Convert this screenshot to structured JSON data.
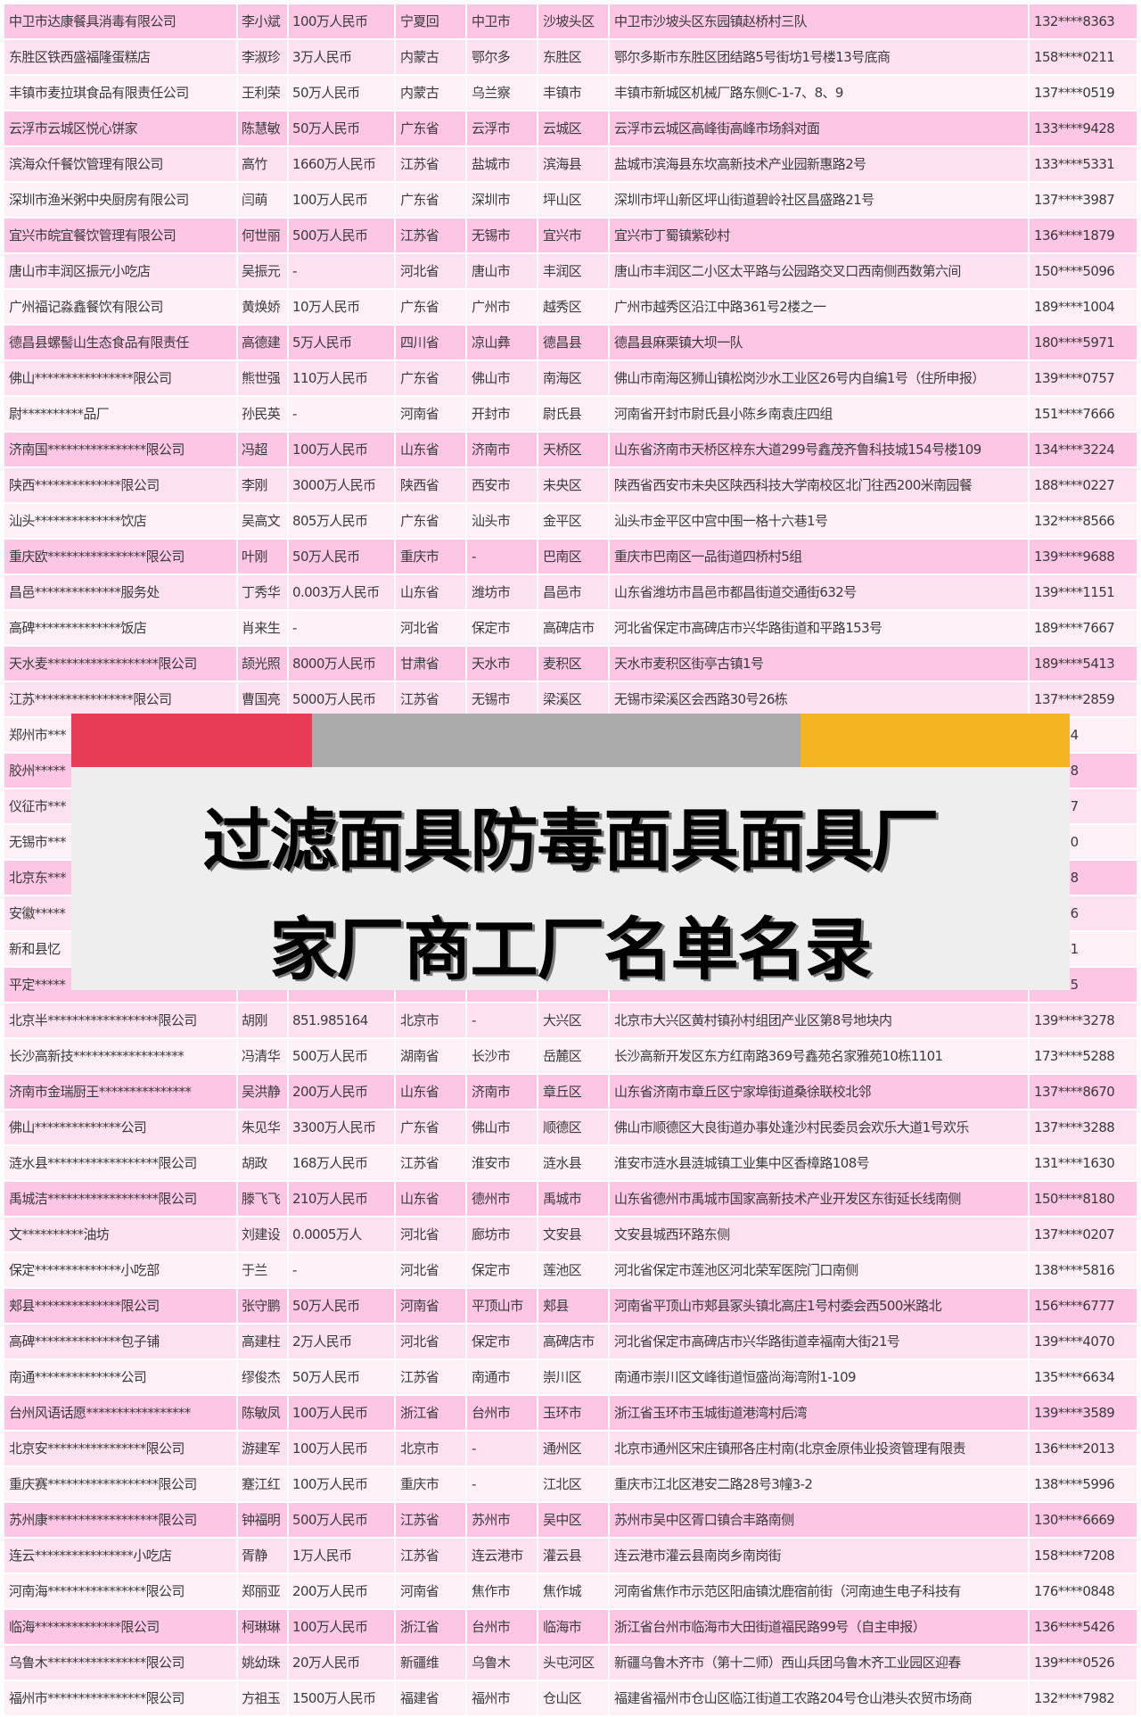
{
  "banner": {
    "title": "过滤面具防毒面具面具厂家厂商工厂名单名录",
    "colors": {
      "red": "#e83c56",
      "gray": "#aaaaaa",
      "yellow": "#f5b523",
      "box": "#eeeeee"
    }
  },
  "row_colors": [
    "#fdc6e5",
    "#fee1f0",
    "#fff0f8"
  ],
  "rows": [
    [
      "中卫市达康餐具消毒有限公司",
      "李小斌",
      "100万人民币",
      "宁夏回",
      "中卫市",
      "沙坡头区",
      "中卫市沙坡头区东园镇赵桥村三队",
      "132****8363"
    ],
    [
      "东胜区铁西盛福隆蛋糕店",
      "李淑珍",
      "3万人民币",
      "内蒙古",
      "鄂尔多",
      "东胜区",
      "鄂尔多斯市东胜区团结路5号街坊1号楼13号底商",
      "158****0211"
    ],
    [
      "丰镇市麦拉琪食品有限责任公司",
      "王利荣",
      "50万人民币",
      "内蒙古",
      "乌兰察",
      "丰镇市",
      "丰镇市新城区机械厂路东侧C-1-7、8、9",
      "137****0519"
    ],
    [
      "云浮市云城区悦心饼家",
      "陈慧敏",
      "50万人民币",
      "广东省",
      "云浮市",
      "云城区",
      "云浮市云城区高峰街高峰市场斜对面",
      "133****9428"
    ],
    [
      "滨海众仟餐饮管理有限公司",
      "高竹",
      "1660万人民币",
      "江苏省",
      "盐城市",
      "滨海县",
      "盐城市滨海县东坎高新技术产业园新惠路2号",
      "133****5331"
    ],
    [
      "深圳市渔米粥中央厨房有限公司",
      "闫萌",
      "100万人民币",
      "广东省",
      "深圳市",
      "坪山区",
      "深圳市坪山新区坪山街道碧岭社区昌盛路21号",
      "137****3987"
    ],
    [
      "宜兴市皖宜餐饮管理有限公司",
      "何世丽",
      "500万人民币",
      "江苏省",
      "无锡市",
      "宜兴市",
      "宜兴市丁蜀镇紫砂村",
      "136****1879"
    ],
    [
      "唐山市丰润区振元小吃店",
      "吴振元",
      "-",
      "河北省",
      "唐山市",
      "丰润区",
      "唐山市丰润区二小区太平路与公园路交叉口西南侧西数第六间",
      "150****5096"
    ],
    [
      "广州福记淼鑫餐饮有限公司",
      "黄焕娇",
      "10万人民币",
      "广东省",
      "广州市",
      "越秀区",
      "广州市越秀区沿江中路361号2楼之一",
      "189****1004"
    ],
    [
      "德昌县螺髻山生态食品有限责任",
      "高德建",
      "5万人民币",
      "四川省",
      "凉山彝",
      "德昌县",
      "德昌县麻栗镇大坝一队",
      "180****5971"
    ],
    [
      "佛山****************限公司",
      "熊世强",
      "110万人民币",
      "广东省",
      "佛山市",
      "南海区",
      "佛山市南海区狮山镇松岗沙水工业区26号内自编1号（住所申报）",
      "139****0757"
    ],
    [
      "尉**********品厂",
      "孙民英",
      "-",
      "河南省",
      "开封市",
      "尉氏县",
      "河南省开封市尉氏县小陈乡南袁庄四组",
      "151****7666"
    ],
    [
      "济南国****************限公司",
      "冯超",
      "100万人民币",
      "山东省",
      "济南市",
      "天桥区",
      "山东省济南市天桥区梓东大道299号鑫茂齐鲁科技城154号楼109",
      "134****3224"
    ],
    [
      "陕西**************限公司",
      "李刚",
      "3000万人民币",
      "陕西省",
      "西安市",
      "未央区",
      "陕西省西安市未央区陕西科技大学南校区北门往西200米南园餐",
      "188****0227"
    ],
    [
      "汕头**************饮店",
      "吴高文",
      "805万人民币",
      "广东省",
      "汕头市",
      "金平区",
      "汕头市金平区中宫中围一格十六巷1号",
      "132****8566"
    ],
    [
      "重庆欧****************限公司",
      "叶刚",
      "50万人民币",
      "重庆市",
      "-",
      "巴南区",
      "重庆市巴南区一品街道四桥村5组",
      "139****9688"
    ],
    [
      "昌邑**************服务处",
      "丁秀华",
      "0.003万人民币",
      "山东省",
      "潍坊市",
      "昌邑市",
      "山东省潍坊市昌邑市都昌街道交通街632号",
      "139****1151"
    ],
    [
      "高碑**************饭店",
      "肖来生",
      "-",
      "河北省",
      "保定市",
      "高碑店市",
      "河北省保定市高碑店市兴华路街道和平路153号",
      "189****7667"
    ],
    [
      "天水麦******************限公司",
      "颉光照",
      "8000万人民币",
      "甘肃省",
      "天水市",
      "麦积区",
      "天水市麦积区街亭古镇1号",
      "189****5413"
    ],
    [
      "江苏****************限公司",
      "曹国亮",
      "5000万人民币",
      "江苏省",
      "无锡市",
      "梁溪区",
      "无锡市梁溪区会西路30号26栋",
      "137****2859"
    ],
    [
      "郑州市***",
      "",
      "",
      "",
      "",
      "",
      "",
      "**1124"
    ],
    [
      "胶州*****",
      "",
      "",
      "",
      "",
      "",
      "",
      "**7698"
    ],
    [
      "仪征市***",
      "",
      "",
      "",
      "",
      "",
      "",
      "**3777"
    ],
    [
      "无锡市***",
      "",
      "",
      "",
      "",
      "",
      "",
      "**3150"
    ],
    [
      "北京东***",
      "",
      "",
      "",
      "",
      "",
      "",
      "**3818"
    ],
    [
      "安徽*****",
      "",
      "",
      "",
      "",
      "",
      "",
      "**6396"
    ],
    [
      "新和县忆",
      "",
      "",
      "",
      "",
      "",
      "",
      "**8841"
    ],
    [
      "平定*****",
      "",
      "",
      "",
      "",
      "",
      "",
      "**6425"
    ],
    [
      "北京半******************限公司",
      "胡刚",
      "851.985164",
      "北京市",
      "-",
      "大兴区",
      "北京市大兴区黄村镇孙村组团产业区第8号地块内",
      "139****3278"
    ],
    [
      "长沙高新技******************",
      "冯清华",
      "500万人民币",
      "湖南省",
      "长沙市",
      "岳麓区",
      "长沙高新开发区东方红南路369号鑫苑名家雅苑10栋1101",
      "173****5288"
    ],
    [
      "济南市金瑞厨王***************",
      "吴洪静",
      "200万人民币",
      "山东省",
      "济南市",
      "章丘区",
      "山东省济南市章丘区宁家埠街道桑徐联校北邻",
      "137****8670"
    ],
    [
      "佛山**************公司",
      "朱见华",
      "3300万人民币",
      "广东省",
      "佛山市",
      "顺德区",
      "佛山市顺德区大良街道办事处逢沙村民委员会欢乐大道1号欢乐",
      "137****3288"
    ],
    [
      "涟水县******************限公司",
      "胡政",
      "168万人民币",
      "江苏省",
      "淮安市",
      "涟水县",
      "淮安市涟水县涟城镇工业集中区香樟路108号",
      "131****1630"
    ],
    [
      "禹城洁******************限公司",
      "滕飞飞",
      "210万人民币",
      "山东省",
      "德州市",
      "禹城市",
      "山东省德州市禹城市国家高新技术产业开发区东街延长线南侧",
      "150****8180"
    ],
    [
      "文**********油坊",
      "刘建设",
      "0.0005万人",
      "河北省",
      "廊坊市",
      "文安县",
      "文安县城西环路东侧",
      "137****0207"
    ],
    [
      "保定**************小吃部",
      "于兰",
      "-",
      "河北省",
      "保定市",
      "莲池区",
      "河北省保定市莲池区河北荣军医院门口南侧",
      "138****5816"
    ],
    [
      "郏县**************限公司",
      "张守鹏",
      "50万人民币",
      "河南省",
      "平顶山市",
      "郏县",
      "河南省平顶山市郏县冢头镇北高庄1号村委会西500米路北",
      "156****6777"
    ],
    [
      "高碑**************包子铺",
      "高建柱",
      "2万人民币",
      "河北省",
      "保定市",
      "高碑店市",
      "河北省保定市高碑店市兴华路街道幸福南大街21号",
      "139****4070"
    ],
    [
      "南通**************公司",
      "缪俊杰",
      "50万人民币",
      "江苏省",
      "南通市",
      "崇川区",
      "南通市崇川区文峰街道恒盛尚海湾附1-109",
      "135****6634"
    ],
    [
      "台州风语话愿*****************",
      "陈敏凤",
      "100万人民币",
      "浙江省",
      "台州市",
      "玉环市",
      "浙江省玉环市玉城街道港湾村后湾",
      "139****3589"
    ],
    [
      "北京安****************限公司",
      "游建军",
      "100万人民币",
      "北京市",
      "-",
      "通州区",
      "北京市通州区宋庄镇邢各庄村南(北京金原伟业投资管理有限责",
      "136****2013"
    ],
    [
      "重庆赛******************限公司",
      "蹇江红",
      "100万人民币",
      "重庆市",
      "-",
      "江北区",
      "重庆市江北区港安二路28号3幢3-2",
      "138****5996"
    ],
    [
      "苏州康******************限公司",
      "钟福明",
      "500万人民币",
      "江苏省",
      "苏州市",
      "吴中区",
      "苏州市吴中区胥口镇合丰路南侧",
      "130****6669"
    ],
    [
      "连云****************小吃店",
      "胥静",
      "1万人民币",
      "江苏省",
      "连云港市",
      "灌云县",
      "连云港市灌云县南岗乡南岗街",
      "158****7208"
    ],
    [
      "河南海****************限公司",
      "郑丽亚",
      "200万人民币",
      "河南省",
      "焦作市",
      "焦作城",
      "河南省焦作市示范区阳庙镇沈鹿宿前街（河南迪生电子科技有",
      "176****0848"
    ],
    [
      "临海**************限公司",
      "柯琳琳",
      "100万人民币",
      "浙江省",
      "台州市",
      "临海市",
      "浙江省台州市临海市大田街道福民路99号（自主申报）",
      "136****5426"
    ],
    [
      "乌鲁木****************限公司",
      "姚幼珠",
      "20万人民币",
      "新疆维",
      "乌鲁木",
      "头屯河区",
      "新疆乌鲁木齐市（第十二师）西山兵团乌鲁木齐工业园区迎春",
      "139****0526"
    ],
    [
      "福州市****************限公司",
      "方祖玉",
      "1500万人民币",
      "福建省",
      "福州市",
      "仓山区",
      "福建省福州市仓山区临江街道工农路204号仓山港头农贸市场商",
      "132****7982"
    ]
  ]
}
